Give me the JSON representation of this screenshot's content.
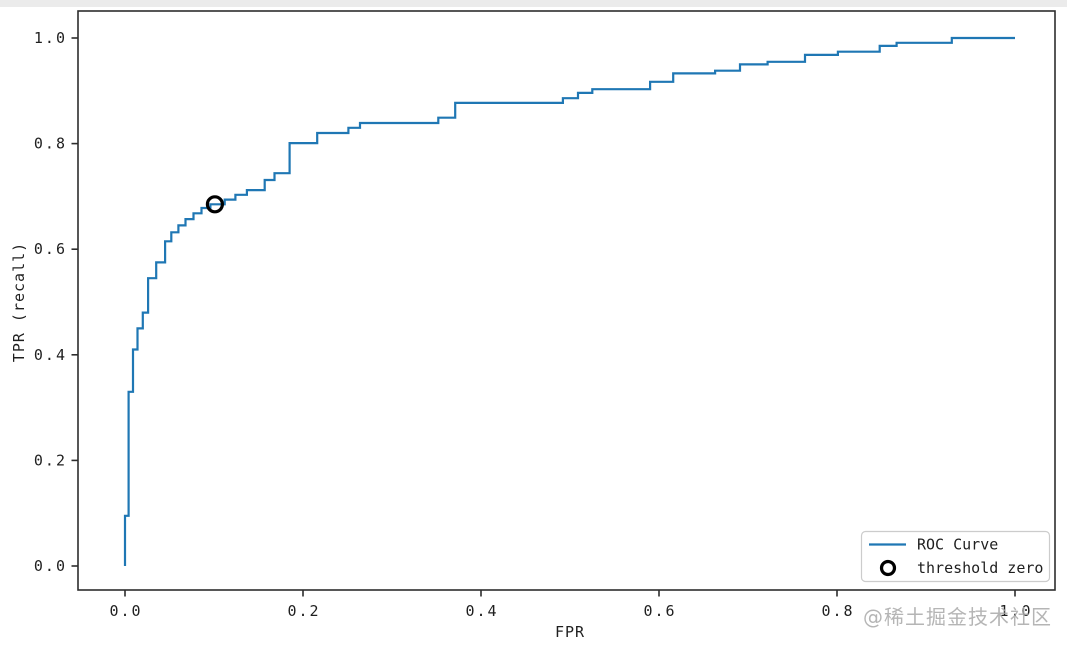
{
  "figure": {
    "watermark": "@稀土掘金技术社区"
  },
  "chart_data": {
    "type": "line",
    "variant": "roc-step-curve",
    "title": "",
    "xlabel": "FPR",
    "ylabel": "TPR (recall)",
    "xlim": [
      -0.05,
      1.05
    ],
    "ylim": [
      -0.05,
      1.05
    ],
    "grid": false,
    "x_ticks": [
      {
        "value": 0.0,
        "label": "0.0"
      },
      {
        "value": 0.2,
        "label": "0.2"
      },
      {
        "value": 0.4,
        "label": "0.4"
      },
      {
        "value": 0.6,
        "label": "0.6"
      },
      {
        "value": 0.8,
        "label": "0.8"
      },
      {
        "value": 1.0,
        "label": "1.0"
      }
    ],
    "y_ticks": [
      {
        "value": 0.0,
        "label": "0.0"
      },
      {
        "value": 0.2,
        "label": "0.2"
      },
      {
        "value": 0.4,
        "label": "0.4"
      },
      {
        "value": 0.6,
        "label": "0.6"
      },
      {
        "value": 0.8,
        "label": "0.8"
      },
      {
        "value": 1.0,
        "label": "1.0"
      }
    ],
    "legend": {
      "position": "lower right",
      "entries": [
        {
          "label": "ROC Curve",
          "marker": "line",
          "color": "#1f77b4"
        },
        {
          "label": "threshold zero",
          "marker": "open-circle",
          "color": "#000000"
        }
      ]
    },
    "series": [
      {
        "name": "ROC Curve",
        "color": "#1f77b4",
        "line_width": 2,
        "step": true,
        "points": [
          [
            0.0,
            0.0
          ],
          [
            0.0,
            0.095
          ],
          [
            0.004,
            0.095
          ],
          [
            0.004,
            0.33
          ],
          [
            0.009,
            0.33
          ],
          [
            0.009,
            0.41
          ],
          [
            0.014,
            0.41
          ],
          [
            0.014,
            0.45
          ],
          [
            0.02,
            0.45
          ],
          [
            0.02,
            0.48
          ],
          [
            0.026,
            0.48
          ],
          [
            0.026,
            0.545
          ],
          [
            0.035,
            0.545
          ],
          [
            0.035,
            0.575
          ],
          [
            0.045,
            0.575
          ],
          [
            0.045,
            0.615
          ],
          [
            0.052,
            0.615
          ],
          [
            0.052,
            0.632
          ],
          [
            0.06,
            0.632
          ],
          [
            0.06,
            0.645
          ],
          [
            0.068,
            0.645
          ],
          [
            0.068,
            0.657
          ],
          [
            0.077,
            0.657
          ],
          [
            0.077,
            0.668
          ],
          [
            0.086,
            0.668
          ],
          [
            0.086,
            0.678
          ],
          [
            0.096,
            0.678
          ],
          [
            0.096,
            0.685
          ],
          [
            0.112,
            0.685
          ],
          [
            0.112,
            0.694
          ],
          [
            0.124,
            0.694
          ],
          [
            0.124,
            0.703
          ],
          [
            0.137,
            0.703
          ],
          [
            0.137,
            0.712
          ],
          [
            0.157,
            0.712
          ],
          [
            0.157,
            0.731
          ],
          [
            0.168,
            0.731
          ],
          [
            0.168,
            0.744
          ],
          [
            0.185,
            0.744
          ],
          [
            0.185,
            0.801
          ],
          [
            0.216,
            0.801
          ],
          [
            0.216,
            0.82
          ],
          [
            0.251,
            0.82
          ],
          [
            0.251,
            0.83
          ],
          [
            0.264,
            0.83
          ],
          [
            0.264,
            0.839
          ],
          [
            0.352,
            0.839
          ],
          [
            0.352,
            0.849
          ],
          [
            0.371,
            0.849
          ],
          [
            0.371,
            0.877
          ],
          [
            0.492,
            0.877
          ],
          [
            0.492,
            0.886
          ],
          [
            0.509,
            0.886
          ],
          [
            0.509,
            0.896
          ],
          [
            0.525,
            0.896
          ],
          [
            0.525,
            0.903
          ],
          [
            0.59,
            0.903
          ],
          [
            0.59,
            0.917
          ],
          [
            0.616,
            0.917
          ],
          [
            0.616,
            0.933
          ],
          [
            0.663,
            0.933
          ],
          [
            0.663,
            0.938
          ],
          [
            0.691,
            0.938
          ],
          [
            0.691,
            0.95
          ],
          [
            0.722,
            0.95
          ],
          [
            0.722,
            0.955
          ],
          [
            0.764,
            0.955
          ],
          [
            0.764,
            0.968
          ],
          [
            0.801,
            0.968
          ],
          [
            0.801,
            0.974
          ],
          [
            0.848,
            0.974
          ],
          [
            0.848,
            0.985
          ],
          [
            0.867,
            0.985
          ],
          [
            0.867,
            0.991
          ],
          [
            0.929,
            0.991
          ],
          [
            0.929,
            1.0
          ],
          [
            1.0,
            1.0
          ]
        ]
      }
    ],
    "markers": [
      {
        "name": "threshold zero",
        "x": 0.101,
        "y": 0.685,
        "shape": "open-circle",
        "color": "#000000"
      }
    ]
  }
}
